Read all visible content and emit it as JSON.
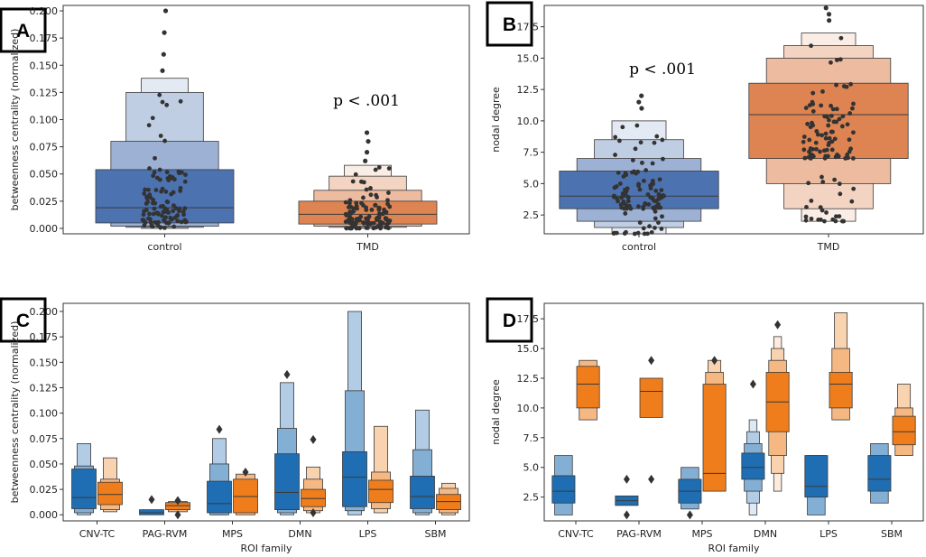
{
  "colors": {
    "blue": "#4c72b0",
    "orange": "#dd8452",
    "blue_dark": "#1f6eb3",
    "orange_dark": "#ef7d1b",
    "points": "#333333",
    "edge": "#444444"
  },
  "chart_data": [
    {
      "panel": "A",
      "type": "boxen",
      "annotation": "p < .001",
      "ylabel": "betweenness centrality (normalized)",
      "xlabel": "",
      "categories": [
        "control",
        "TMD"
      ],
      "ylim": [
        -0.005,
        0.205
      ],
      "yticks": [
        "0.000",
        "0.025",
        "0.050",
        "0.075",
        "0.100",
        "0.125",
        "0.150",
        "0.175",
        "0.200"
      ],
      "series": [
        {
          "name": "control",
          "levels": [
            [
              0.005,
              0.054
            ],
            [
              0.002,
              0.08
            ],
            [
              0.001,
              0.125
            ],
            [
              0.0,
              0.138
            ]
          ],
          "median": 0.019,
          "outliers": [
            0.145,
            0.16,
            0.18,
            0.2
          ]
        },
        {
          "name": "TMD",
          "levels": [
            [
              0.004,
              0.025
            ],
            [
              0.002,
              0.035
            ],
            [
              0.001,
              0.048
            ],
            [
              0.0,
              0.058
            ]
          ],
          "median": 0.013,
          "outliers": [
            0.062,
            0.07,
            0.08,
            0.088
          ]
        }
      ]
    },
    {
      "panel": "B",
      "type": "boxen",
      "annotation": "p < .001",
      "ylabel": "nodal degree",
      "xlabel": "",
      "categories": [
        "control",
        "TMD"
      ],
      "ylim": [
        1.0,
        19.2
      ],
      "yticks": [
        "2.5",
        "5.0",
        "7.5",
        "10.0",
        "12.5",
        "15.0",
        "17.5"
      ],
      "series": [
        {
          "name": "control",
          "levels": [
            [
              3,
              6
            ],
            [
              2,
              7
            ],
            [
              1.5,
              8.5
            ],
            [
              1,
              10
            ]
          ],
          "median": 4,
          "outliers": [
            11,
            11.5,
            12
          ]
        },
        {
          "name": "TMD",
          "levels": [
            [
              7,
              13
            ],
            [
              5,
              15
            ],
            [
              3,
              16
            ],
            [
              2,
              17
            ]
          ],
          "median": 10.5,
          "outliers": [
            18,
            18.5,
            19
          ]
        }
      ]
    },
    {
      "panel": "C",
      "type": "boxen",
      "ylabel": "betweenness centrality (normalized)",
      "xlabel": "ROI family",
      "categories": [
        "CNV-TC",
        "PAG-RVM",
        "MPS",
        "DMN",
        "LPS",
        "SBM"
      ],
      "ylim": [
        -0.006,
        0.208
      ],
      "yticks": [
        "0.000",
        "0.025",
        "0.050",
        "0.075",
        "0.100",
        "0.125",
        "0.150",
        "0.175",
        "0.200"
      ],
      "series": [
        {
          "name": "control",
          "boxes": [
            {
              "levels": [
                [
                  0.006,
                  0.045
                ],
                [
                  0.002,
                  0.048
                ],
                [
                  0.0,
                  0.07
                ]
              ],
              "median": 0.017,
              "outliers": []
            },
            {
              "levels": [
                [
                  0.0,
                  0.005
                ]
              ],
              "median": 0.002,
              "outliers": [
                0.015
              ]
            },
            {
              "levels": [
                [
                  0.002,
                  0.033
                ],
                [
                  0.0,
                  0.05
                ],
                [
                  0.0,
                  0.075
                ]
              ],
              "median": 0.011,
              "outliers": [
                0.084
              ]
            },
            {
              "levels": [
                [
                  0.005,
                  0.06
                ],
                [
                  0.002,
                  0.085
                ],
                [
                  0.0,
                  0.13
                ]
              ],
              "median": 0.022,
              "outliers": [
                0.138
              ]
            },
            {
              "levels": [
                [
                  0.008,
                  0.062
                ],
                [
                  0.004,
                  0.122
                ],
                [
                  0.0,
                  0.2
                ]
              ],
              "median": 0.037,
              "outliers": []
            },
            {
              "levels": [
                [
                  0.006,
                  0.038
                ],
                [
                  0.002,
                  0.064
                ],
                [
                  0.0,
                  0.103
                ]
              ],
              "median": 0.018,
              "outliers": []
            }
          ]
        },
        {
          "name": "TMD",
          "boxes": [
            {
              "levels": [
                [
                  0.01,
                  0.032
                ],
                [
                  0.005,
                  0.035
                ],
                [
                  0.003,
                  0.056
                ]
              ],
              "median": 0.02,
              "outliers": []
            },
            {
              "levels": [
                [
                  0.005,
                  0.012
                ],
                [
                  0.003,
                  0.013
                ]
              ],
              "median": 0.009,
              "outliers": [
                0.0,
                0.014
              ]
            },
            {
              "levels": [
                [
                  0.002,
                  0.035
                ],
                [
                  0.0,
                  0.04
                ]
              ],
              "median": 0.018,
              "outliers": [
                0.042
              ]
            },
            {
              "levels": [
                [
                  0.008,
                  0.025
                ],
                [
                  0.004,
                  0.035
                ],
                [
                  0.002,
                  0.047
                ]
              ],
              "median": 0.016,
              "outliers": [
                0.002,
                0.074
              ]
            },
            {
              "levels": [
                [
                  0.012,
                  0.034
                ],
                [
                  0.006,
                  0.042
                ],
                [
                  0.002,
                  0.087
                ]
              ],
              "median": 0.025,
              "outliers": []
            },
            {
              "levels": [
                [
                  0.005,
                  0.02
                ],
                [
                  0.002,
                  0.026
                ],
                [
                  0.0,
                  0.031
                ]
              ],
              "median": 0.013,
              "outliers": []
            }
          ]
        }
      ]
    },
    {
      "panel": "D",
      "type": "boxen",
      "ylabel": "nodal degree",
      "xlabel": "ROI family",
      "categories": [
        "CNV-TC",
        "PAG-RVM",
        "MPS",
        "DMN",
        "LPS",
        "SBM"
      ],
      "ylim": [
        0.5,
        18.8
      ],
      "yticks": [
        "2.5",
        "5.0",
        "7.5",
        "10.0",
        "12.5",
        "15.0",
        "17.5"
      ],
      "series": [
        {
          "name": "control",
          "boxes": [
            {
              "levels": [
                [
                  2,
                  4.3
                ],
                [
                  1,
                  6
                ]
              ],
              "median": 3,
              "outliers": []
            },
            {
              "levels": [
                [
                  1.8,
                  2.6
                ]
              ],
              "median": 2.2,
              "outliers": [
                1,
                4
              ]
            },
            {
              "levels": [
                [
                  2,
                  4
                ],
                [
                  1.5,
                  5
                ]
              ],
              "median": 3,
              "outliers": [
                1
              ]
            },
            {
              "levels": [
                [
                  4,
                  6.2
                ],
                [
                  3,
                  7
                ],
                [
                  2,
                  8
                ],
                [
                  1,
                  9
                ]
              ],
              "median": 5,
              "outliers": [
                12
              ]
            },
            {
              "levels": [
                [
                  2.5,
                  6
                ],
                [
                  1,
                  6
                ]
              ],
              "median": 3.4,
              "outliers": []
            },
            {
              "levels": [
                [
                  3,
                  6
                ],
                [
                  2,
                  7
                ]
              ],
              "median": 4,
              "outliers": []
            }
          ]
        },
        {
          "name": "TMD",
          "boxes": [
            {
              "levels": [
                [
                  10,
                  13.5
                ],
                [
                  9,
                  14
                ]
              ],
              "median": 12,
              "outliers": []
            },
            {
              "levels": [
                [
                  9.2,
                  12.5
                ]
              ],
              "median": 11.4,
              "outliers": [
                4,
                14
              ]
            },
            {
              "levels": [
                [
                  3,
                  12
                ],
                [
                  3,
                  13
                ],
                [
                  3,
                  14
                ]
              ],
              "median": 4.5,
              "outliers": [
                14
              ]
            },
            {
              "levels": [
                [
                  8,
                  13
                ],
                [
                  6,
                  14
                ],
                [
                  4.5,
                  15
                ],
                [
                  3,
                  16
                ]
              ],
              "median": 10.5,
              "outliers": [
                17
              ]
            },
            {
              "levels": [
                [
                  10,
                  13
                ],
                [
                  9,
                  15
                ],
                [
                  9,
                  18
                ]
              ],
              "median": 12,
              "outliers": []
            },
            {
              "levels": [
                [
                  6.9,
                  9.3
                ],
                [
                  6,
                  10
                ],
                [
                  6,
                  12
                ]
              ],
              "median": 8,
              "outliers": []
            }
          ]
        }
      ]
    }
  ]
}
